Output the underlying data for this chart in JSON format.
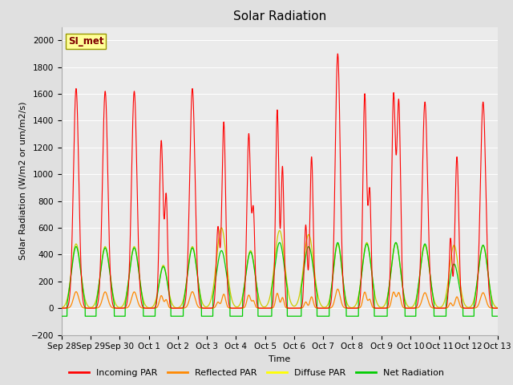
{
  "title": "Solar Radiation",
  "ylabel": "Solar Radiation (W/m2 or um/m2/s)",
  "xlabel": "Time",
  "ylim": [
    -200,
    2100
  ],
  "yticks": [
    -200,
    0,
    200,
    400,
    600,
    800,
    1000,
    1200,
    1400,
    1600,
    1800,
    2000
  ],
  "xtick_labels": [
    "Sep 28",
    "Sep 29",
    "Sep 30",
    "Oct 1",
    "Oct 2",
    "Oct 3",
    "Oct 4",
    "Oct 5",
    "Oct 6",
    "Oct 7",
    "Oct 8",
    "Oct 9",
    "Oct 10",
    "Oct 11",
    "Oct 12",
    "Oct 13"
  ],
  "xtick_positions": [
    0,
    1,
    2,
    3,
    4,
    5,
    6,
    7,
    8,
    9,
    10,
    11,
    12,
    13,
    14,
    15
  ],
  "legend_label": "SI_met",
  "legend_entries": [
    "Incoming PAR",
    "Reflected PAR",
    "Diffuse PAR",
    "Net Radiation"
  ],
  "legend_colors": [
    "#ff0000",
    "#ff8800",
    "#ffff00",
    "#00cc00"
  ],
  "fig_background": "#e0e0e0",
  "plot_background": "#ebebeb",
  "title_fontsize": 11,
  "label_fontsize": 8,
  "tick_fontsize": 7.5,
  "grid_color": "#ffffff",
  "annotation_box_color": "#ffff99",
  "annotation_text_color": "#800000",
  "incoming_color": "#ff0000",
  "reflected_color": "#ff8800",
  "diffuse_color": "#cccc00",
  "net_color": "#00cc00",
  "night_level": -60,
  "reflected_scale": 0.075,
  "diffuse_peak": 450,
  "net_peak": 430
}
